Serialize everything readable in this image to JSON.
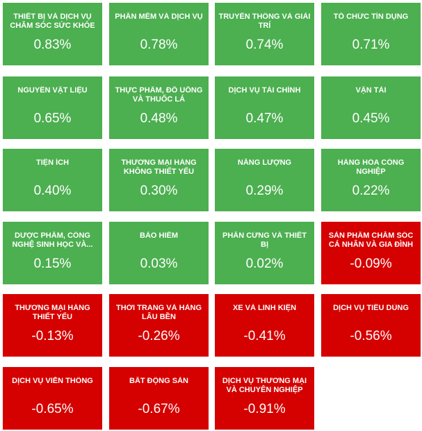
{
  "colors": {
    "up": "#4caf50",
    "down": "#d50000"
  },
  "tiles": [
    {
      "name": "THIẾT BỊ VÀ DỊCH VỤ CHĂM SÓC SỨC KHỎE",
      "value": "0.83%",
      "trend": "up"
    },
    {
      "name": "PHẦN MỀM VÀ DỊCH VỤ",
      "value": "0.78%",
      "trend": "up"
    },
    {
      "name": "TRUYỀN THÔNG VÀ GIẢI TRÍ",
      "value": "0.74%",
      "trend": "up"
    },
    {
      "name": "TỔ CHỨC TÍN DỤNG",
      "value": "0.71%",
      "trend": "up"
    },
    {
      "name": "NGUYÊN VẬT LIỆU",
      "value": "0.65%",
      "trend": "up"
    },
    {
      "name": "THỰC PHẨM, ĐỒ UỐNG VÀ THUỐC LÁ",
      "value": "0.48%",
      "trend": "up"
    },
    {
      "name": "DỊCH VỤ TÀI CHÍNH",
      "value": "0.47%",
      "trend": "up"
    },
    {
      "name": "VẬN TẢI",
      "value": "0.45%",
      "trend": "up"
    },
    {
      "name": "TIỆN ÍCH",
      "value": "0.40%",
      "trend": "up"
    },
    {
      "name": "THƯƠNG MẠI HÀNG KHÔNG THIẾT YẾU",
      "value": "0.30%",
      "trend": "up"
    },
    {
      "name": "NĂNG LƯỢNG",
      "value": "0.29%",
      "trend": "up"
    },
    {
      "name": "HÀNG HÓA CÔNG NGHIỆP",
      "value": "0.22%",
      "trend": "up"
    },
    {
      "name": "DƯỢC PHẨM, CÔNG NGHỆ SINH HỌC VÀ...",
      "value": "0.15%",
      "trend": "up"
    },
    {
      "name": "BẢO HIỂM",
      "value": "0.03%",
      "trend": "up"
    },
    {
      "name": "PHẦN CỨNG VÀ THIẾT BỊ",
      "value": "0.02%",
      "trend": "up"
    },
    {
      "name": "SẢN PHẨM CHĂM SÓC CÁ NHÂN VÀ GIA ĐÌNH",
      "value": "-0.09%",
      "trend": "down"
    },
    {
      "name": "THƯƠNG MẠI HÀNG THIẾT YẾU",
      "value": "-0.13%",
      "trend": "down"
    },
    {
      "name": "THỜI TRANG VÀ HÀNG LÂU BỀN",
      "value": "-0.26%",
      "trend": "down"
    },
    {
      "name": "XE VÀ LINH KIỆN",
      "value": "-0.41%",
      "trend": "down"
    },
    {
      "name": "DỊCH VỤ TIÊU DÙNG",
      "value": "-0.56%",
      "trend": "down"
    },
    {
      "name": "DỊCH VỤ VIỄN THÔNG",
      "value": "-0.65%",
      "trend": "down"
    },
    {
      "name": "BẤT ĐỘNG SẢN",
      "value": "-0.67%",
      "trend": "down"
    },
    {
      "name": "DỊCH VỤ THƯƠNG MẠI VÀ CHUYÊN NGHIỆP",
      "value": "-0.91%",
      "trend": "down"
    }
  ]
}
